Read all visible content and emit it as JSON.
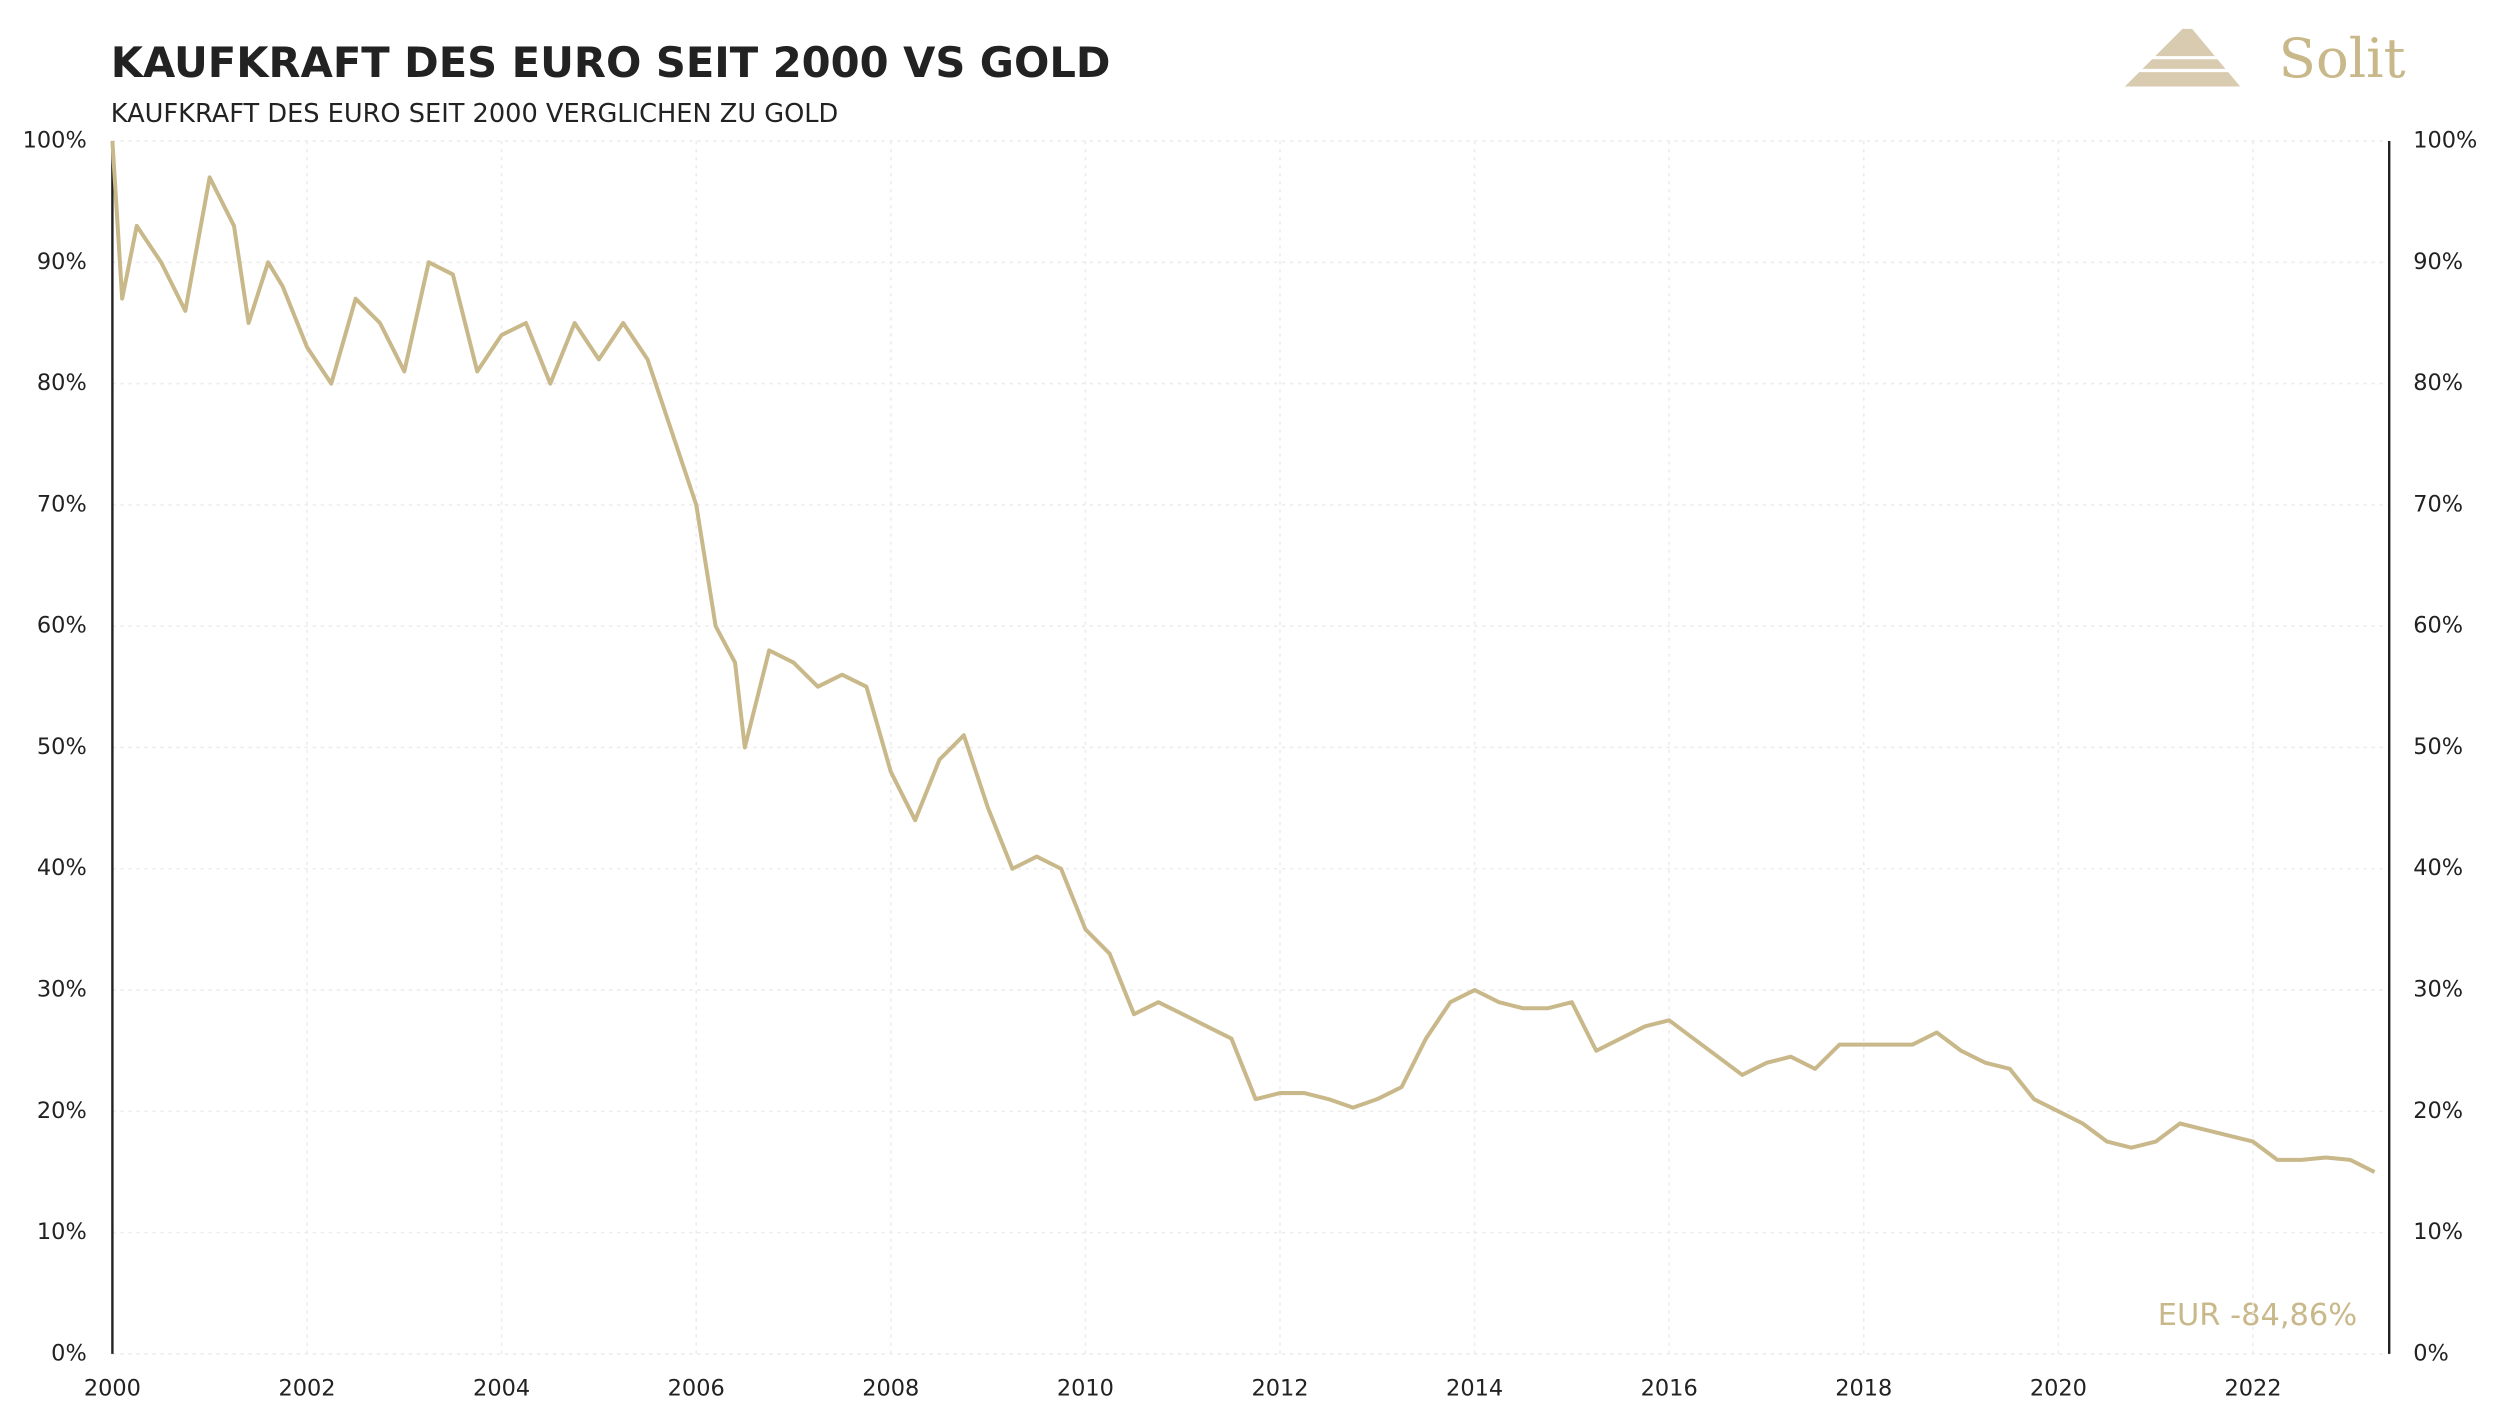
{
  "chart_data": {
    "type": "line",
    "title": "KAUFKRAFT DES EURO SEIT 2000 VS GOLD",
    "subtitle": "KAUFKRAFT DES EURO SEIT 2000 VERGLICHEN ZU GOLD",
    "logo": "Solit",
    "annotation": "EUR -84,86%",
    "grid": true,
    "xlim": [
      2000,
      2023.4
    ],
    "xticks": [
      2000,
      2002,
      2004,
      2006,
      2008,
      2010,
      2012,
      2014,
      2016,
      2018,
      2020,
      2022
    ],
    "ylim": [
      0,
      100
    ],
    "yticks": [
      {
        "value": 0,
        "label": "0%"
      },
      {
        "value": 10,
        "label": "10%"
      },
      {
        "value": 20,
        "label": "20%"
      },
      {
        "value": 30,
        "label": "30%"
      },
      {
        "value": 40,
        "label": "40%"
      },
      {
        "value": 50,
        "label": "50%"
      },
      {
        "value": 60,
        "label": "60%"
      },
      {
        "value": 70,
        "label": "70%"
      },
      {
        "value": 80,
        "label": "80%"
      },
      {
        "value": 90,
        "label": "90%"
      },
      {
        "value": 100,
        "label": "100%"
      }
    ],
    "x": [
      2000.0,
      2000.1,
      2000.25,
      2000.5,
      2000.75,
      2001.0,
      2001.25,
      2001.4,
      2001.6,
      2001.75,
      2002.0,
      2002.25,
      2002.5,
      2002.75,
      2003.0,
      2003.25,
      2003.5,
      2003.75,
      2004.0,
      2004.25,
      2004.5,
      2004.75,
      2005.0,
      2005.25,
      2005.5,
      2005.75,
      2006.0,
      2006.2,
      2006.4,
      2006.5,
      2006.75,
      2007.0,
      2007.25,
      2007.5,
      2007.75,
      2008.0,
      2008.25,
      2008.5,
      2008.75,
      2009.0,
      2009.25,
      2009.5,
      2009.75,
      2010.0,
      2010.25,
      2010.5,
      2010.75,
      2011.0,
      2011.25,
      2011.5,
      2011.75,
      2012.0,
      2012.25,
      2012.5,
      2012.75,
      2013.0,
      2013.25,
      2013.5,
      2013.75,
      2014.0,
      2014.25,
      2014.5,
      2014.75,
      2015.0,
      2015.25,
      2015.5,
      2015.75,
      2016.0,
      2016.25,
      2016.5,
      2016.75,
      2017.0,
      2017.25,
      2017.5,
      2017.75,
      2018.0,
      2018.25,
      2018.5,
      2018.75,
      2019.0,
      2019.25,
      2019.5,
      2019.75,
      2020.0,
      2020.25,
      2020.5,
      2020.75,
      2021.0,
      2021.25,
      2021.5,
      2021.75,
      2022.0,
      2022.25,
      2022.5,
      2022.75,
      2023.0,
      2023.25
    ],
    "series": [
      {
        "color": "#c8b88a",
        "values": [
          100,
          87,
          93,
          90,
          86,
          97,
          93,
          85,
          90,
          88,
          83,
          80,
          87,
          85,
          81,
          90,
          89,
          81,
          84,
          85,
          80,
          85,
          82,
          85,
          82,
          76,
          70,
          60,
          57,
          50,
          58,
          57,
          55,
          56,
          55,
          48,
          44,
          49,
          51,
          45,
          40,
          41,
          40,
          35,
          33,
          28,
          29,
          28,
          27,
          26,
          21,
          21.5,
          21.5,
          21,
          20.3,
          21,
          22,
          26,
          29,
          30,
          29,
          28.5,
          28.5,
          29,
          25,
          26,
          27,
          27.5,
          26,
          24.5,
          23,
          24,
          24.5,
          23.5,
          25.5,
          25.5,
          25.5,
          25.5,
          26.5,
          25,
          24,
          23.5,
          21,
          20,
          19,
          17.5,
          17,
          17.5,
          19,
          18.5,
          18,
          17.5,
          16,
          16,
          16.2,
          16,
          15
        ]
      }
    ]
  }
}
